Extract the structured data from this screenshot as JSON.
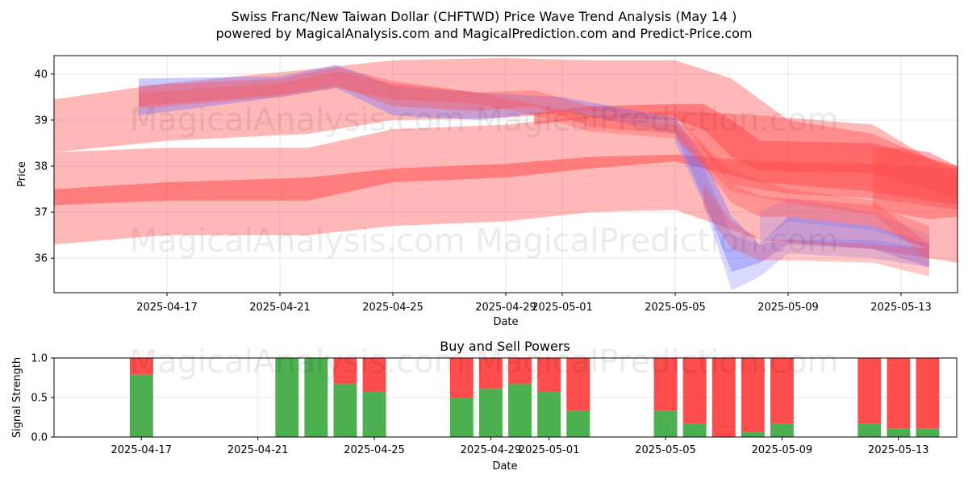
{
  "title_line1": "Swiss Franc/New Taiwan Dollar (CHFTWD) Price Wave Trend Analysis (May 14 )",
  "title_line2": "powered by MagicalAnalysis.com and MagicalPrediction.com and Predict-Price.com",
  "watermark": "MagicalAnalysis.com    MagicalPrediction.com",
  "colors": {
    "red": "#ff4d4d",
    "blue": "#6666ff",
    "buy": "#4caf50",
    "sell": "#ff4d4d",
    "grid": "#e6e6e6"
  },
  "chart_data": [
    {
      "type": "area",
      "xlabel": "Date",
      "ylabel": "Price",
      "ylim": [
        35.25,
        40.4
      ],
      "xlim": [
        "2025-04-13",
        "2025-05-15"
      ],
      "grid": true,
      "x_ticks": [
        "2025-04-17",
        "2025-04-21",
        "2025-04-25",
        "2025-04-29",
        "2025-05-01",
        "2025-05-05",
        "2025-05-09",
        "2025-05-13"
      ],
      "y_ticks": [
        36,
        37,
        38,
        39,
        40
      ],
      "dates": [
        "2025-04-16",
        "2025-04-21",
        "2025-04-22",
        "2025-04-23",
        "2025-04-24",
        "2025-04-25",
        "2025-04-28",
        "2025-04-29",
        "2025-04-30",
        "2025-05-01",
        "2025-05-02",
        "2025-05-05",
        "2025-05-06",
        "2025-05-07",
        "2025-05-08",
        "2025-05-09",
        "2025-05-12",
        "2025-05-13",
        "2025-05-14"
      ],
      "bands": [
        {
          "color": "red",
          "opacity": 0.4,
          "x": [
            "2025-04-13",
            "2025-04-17",
            "2025-04-22",
            "2025-04-25",
            "2025-04-29",
            "2025-05-02",
            "2025-05-05",
            "2025-05-08",
            "2025-05-12",
            "2025-05-15"
          ],
          "upper": [
            38.3,
            38.4,
            38.4,
            38.8,
            38.9,
            39.1,
            39.2,
            39.1,
            38.9,
            37.8
          ],
          "lower": [
            36.3,
            36.5,
            36.5,
            36.7,
            36.8,
            37.0,
            37.05,
            36.4,
            36.2,
            35.9
          ]
        },
        {
          "color": "red",
          "opacity": 0.55,
          "x": [
            "2025-04-13",
            "2025-04-17",
            "2025-04-22",
            "2025-04-25",
            "2025-04-29",
            "2025-05-02",
            "2025-05-05",
            "2025-05-08",
            "2025-05-12",
            "2025-05-15"
          ],
          "upper": [
            37.5,
            37.65,
            37.75,
            37.95,
            38.05,
            38.2,
            38.25,
            38.1,
            38.05,
            37.95
          ],
          "lower": [
            37.15,
            37.25,
            37.25,
            37.65,
            37.75,
            37.95,
            38.1,
            37.65,
            37.45,
            37.15
          ]
        },
        {
          "color": "red",
          "opacity": 0.4,
          "x": [
            "2025-04-13",
            "2025-04-17",
            "2025-04-22",
            "2025-04-25",
            "2025-04-29",
            "2025-05-02",
            "2025-05-05",
            "2025-05-07",
            "2025-05-09",
            "2025-05-12",
            "2025-05-15"
          ],
          "upper": [
            39.45,
            39.8,
            40.1,
            40.3,
            40.35,
            40.3,
            40.3,
            39.9,
            39.0,
            38.7,
            37.9
          ],
          "lower": [
            38.3,
            38.55,
            38.7,
            39.0,
            39.05,
            39.2,
            39.1,
            37.6,
            37.4,
            37.3,
            37.05
          ]
        },
        {
          "color": "red",
          "opacity": 0.55,
          "x": [
            "2025-04-30",
            "2025-05-02",
            "2025-05-05",
            "2025-05-06",
            "2025-05-07",
            "2025-05-08",
            "2025-05-12",
            "2025-05-15"
          ],
          "upper": [
            39.15,
            39.3,
            39.35,
            39.35,
            39.0,
            38.55,
            38.5,
            38.0
          ],
          "lower": [
            38.9,
            39.05,
            39.0,
            38.8,
            38.2,
            37.9,
            37.85,
            37.3
          ]
        },
        {
          "color": "red",
          "opacity": 0.45,
          "x": [
            "2025-05-12",
            "2025-05-13",
            "2025-05-14",
            "2025-05-15"
          ],
          "upper": [
            38.4,
            38.4,
            38.3,
            38.0
          ],
          "lower": [
            37.1,
            36.95,
            36.85,
            36.9
          ]
        },
        {
          "color": "blue",
          "opacity": 0.35,
          "x": [
            "2025-04-16",
            "2025-04-21",
            "2025-04-23",
            "2025-04-25",
            "2025-04-28",
            "2025-05-01",
            "2025-05-05",
            "2025-05-06",
            "2025-05-07",
            "2025-05-08",
            "2025-05-09",
            "2025-05-12",
            "2025-05-14"
          ],
          "upper": [
            39.9,
            39.95,
            40.2,
            39.75,
            39.6,
            39.5,
            39.05,
            38.2,
            36.9,
            36.3,
            36.9,
            36.7,
            36.3
          ],
          "lower": [
            39.1,
            39.5,
            39.7,
            39.1,
            39.0,
            39.2,
            38.7,
            37.3,
            35.7,
            35.9,
            36.3,
            36.2,
            35.8
          ]
        },
        {
          "color": "blue",
          "opacity": 0.25,
          "x": [
            "2025-05-05",
            "2025-05-06",
            "2025-05-07",
            "2025-05-08",
            "2025-05-09",
            "2025-05-12",
            "2025-05-14"
          ],
          "upper": [
            38.9,
            38.0,
            36.5,
            36.3,
            36.4,
            36.4,
            36.2
          ],
          "lower": [
            38.5,
            37.2,
            35.3,
            35.6,
            36.1,
            36.0,
            35.8
          ]
        },
        {
          "color": "blue",
          "opacity": 0.2,
          "x": [
            "2025-05-08",
            "2025-05-09",
            "2025-05-12",
            "2025-05-14"
          ],
          "upper": [
            37.0,
            37.3,
            37.0,
            36.5
          ],
          "lower": [
            36.3,
            36.8,
            36.6,
            36.2
          ]
        },
        {
          "color": "red",
          "opacity": 0.35,
          "x": [
            "2025-04-16",
            "2025-04-21",
            "2025-04-23",
            "2025-04-25",
            "2025-04-28",
            "2025-04-30",
            "2025-05-02",
            "2025-05-05",
            "2025-05-06",
            "2025-05-07",
            "2025-05-08",
            "2025-05-09",
            "2025-05-12",
            "2025-05-14"
          ],
          "upper": [
            39.75,
            39.9,
            40.15,
            39.85,
            39.6,
            39.65,
            39.3,
            39.0,
            38.5,
            37.6,
            37.35,
            37.3,
            37.15,
            36.7
          ],
          "lower": [
            39.3,
            39.55,
            39.75,
            39.3,
            39.2,
            39.3,
            38.85,
            38.7,
            38.0,
            37.2,
            36.9,
            36.9,
            36.7,
            36.2
          ]
        },
        {
          "color": "red",
          "opacity": 0.3,
          "x": [
            "2025-05-06",
            "2025-05-07",
            "2025-05-08",
            "2025-05-09",
            "2025-05-12",
            "2025-05-14"
          ],
          "upper": [
            37.6,
            36.8,
            36.4,
            36.4,
            36.3,
            36.2
          ],
          "lower": [
            37.1,
            36.2,
            35.95,
            35.95,
            35.9,
            35.6
          ]
        },
        {
          "color": "red",
          "opacity": 0.3,
          "x": [
            "2025-04-16",
            "2025-04-21",
            "2025-04-23",
            "2025-04-25",
            "2025-04-28",
            "2025-04-30",
            "2025-05-02",
            "2025-05-05",
            "2025-05-07",
            "2025-05-09",
            "2025-05-12",
            "2025-05-14"
          ],
          "upper": [
            39.6,
            39.8,
            40.05,
            39.8,
            39.6,
            39.35,
            39.1,
            38.9,
            37.9,
            37.5,
            37.25,
            36.3
          ],
          "lower": [
            39.25,
            39.5,
            39.7,
            39.45,
            39.35,
            39.1,
            38.75,
            38.6,
            37.45,
            37.2,
            36.95,
            35.95
          ]
        }
      ]
    },
    {
      "type": "bar",
      "title": "Buy and Sell Powers",
      "xlabel": "Date",
      "ylabel": "Signal Strength",
      "ylim": [
        0,
        1
      ],
      "y_ticks": [
        "0.0",
        "0.5",
        "1.0"
      ],
      "x_ticks": [
        "2025-04-17",
        "2025-04-21",
        "2025-04-25",
        "2025-04-29",
        "2025-05-01",
        "2025-05-05",
        "2025-05-09",
        "2025-05-13"
      ],
      "xlim": [
        "2025-04-14",
        "2025-05-15"
      ],
      "grid": true,
      "categories": [
        "2025-04-17",
        "2025-04-22",
        "2025-04-23",
        "2025-04-24",
        "2025-04-25",
        "2025-04-28",
        "2025-04-29",
        "2025-04-30",
        "2025-05-01",
        "2025-05-02",
        "2025-05-05",
        "2025-05-06",
        "2025-05-07",
        "2025-05-08",
        "2025-05-09",
        "2025-05-12",
        "2025-05-13",
        "2025-05-14"
      ],
      "series": [
        {
          "values": [
            0.79,
            1.0,
            1.0,
            0.67,
            0.57,
            0.5,
            0.61,
            0.67,
            0.57,
            0.33,
            0.33,
            0.17,
            0.0,
            0.06,
            0.17,
            0.17,
            0.11,
            0.11
          ]
        },
        {
          "values": [
            0.21,
            0.0,
            0.0,
            0.33,
            0.43,
            0.5,
            0.39,
            0.33,
            0.43,
            0.67,
            0.67,
            0.83,
            1.0,
            0.94,
            0.83,
            0.83,
            0.89,
            0.89
          ]
        }
      ]
    }
  ]
}
